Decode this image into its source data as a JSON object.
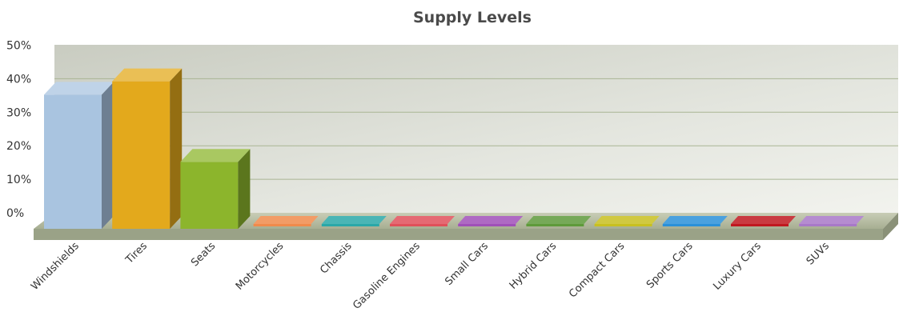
{
  "chart_data": {
    "type": "bar",
    "title": "Supply Levels",
    "xlabel": "",
    "ylabel": "",
    "ylim": [
      0,
      50
    ],
    "yticks": [
      0,
      10,
      20,
      30,
      40,
      50
    ],
    "ytick_labels": [
      "0%",
      "10%",
      "20%",
      "30%",
      "40%",
      "50%"
    ],
    "grid": true,
    "legend": "none",
    "categories": [
      "Windshields",
      "Tires",
      "Seats",
      "Motorcycles",
      "Chassis",
      "Gasoline Engines",
      "Small Cars",
      "Hybrid Cars",
      "Compact Cars",
      "Sports Cars",
      "Luxury Cars",
      "SUVs"
    ],
    "values": [
      40,
      44,
      20,
      0,
      0,
      0,
      0,
      0,
      0,
      0,
      0,
      0
    ],
    "colors": [
      "#a9c4e0",
      "#e3a91c",
      "#8cb52c",
      "#f08a4b",
      "#2aa8a8",
      "#e0505a",
      "#a050b8",
      "#5e9a3a",
      "#c8c020",
      "#2a90d8",
      "#c01820",
      "#a878c8"
    ]
  }
}
